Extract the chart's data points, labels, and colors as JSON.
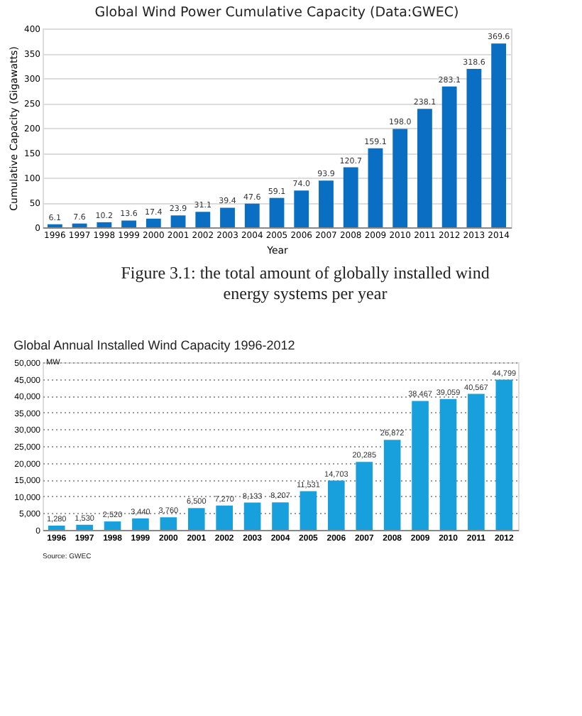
{
  "chart_data": [
    {
      "type": "bar",
      "title": "Global Wind Power Cumulative Capacity (Data:GWEC)",
      "xlabel": "Year",
      "ylabel": "Cumulative Capacity (Gigawatts)",
      "categories": [
        "1996",
        "1997",
        "1998",
        "1999",
        "2000",
        "2001",
        "2002",
        "2003",
        "2004",
        "2005",
        "2006",
        "2007",
        "2008",
        "2009",
        "2010",
        "2011",
        "2012",
        "2013",
        "2014"
      ],
      "values": [
        6.1,
        7.6,
        10.2,
        13.6,
        17.4,
        23.9,
        31.1,
        39.4,
        47.6,
        59.1,
        74.0,
        93.9,
        120.7,
        159.1,
        198.0,
        238.1,
        283.1,
        318.6,
        369.6
      ],
      "value_labels": [
        "6.1",
        "7.6",
        "10.2",
        "13.6",
        "17.4",
        "23.9",
        "31.1",
        "39.4",
        "47.6",
        "59.1",
        "74.0",
        "93.9",
        "120.7",
        "159.1",
        "198.0",
        "238.1",
        "283.1",
        "318.6",
        "369.6"
      ],
      "color": "#0a6fc2",
      "ylim": [
        0,
        400
      ],
      "yticks": [
        0,
        50,
        100,
        150,
        200,
        250,
        300,
        350,
        400
      ],
      "grid": "y",
      "annotations": [
        "Figure 3.1: the total amount of globally installed wind energy systems per year"
      ]
    },
    {
      "type": "bar",
      "title": "Global Annual Installed Wind Capacity 1996-2012",
      "ylabel": "MW",
      "categories": [
        "1996",
        "1997",
        "1998",
        "1999",
        "2000",
        "2001",
        "2002",
        "2003",
        "2004",
        "2005",
        "2006",
        "2007",
        "2008",
        "2009",
        "2010",
        "2011",
        "2012"
      ],
      "values": [
        1280,
        1530,
        2520,
        3440,
        3760,
        6500,
        7270,
        8133,
        8207,
        11531,
        14703,
        20285,
        26872,
        38467,
        39059,
        40567,
        44799
      ],
      "value_labels": [
        "1,280",
        "1,530",
        "2,520",
        "3,440",
        "3,760",
        "6,500",
        "7,270",
        "8,133",
        "8,207",
        "11,531",
        "14,703",
        "20,285",
        "26,872",
        "38,467",
        "39,059",
        "40,567",
        "44,799"
      ],
      "color": "#18a0dc",
      "ylim": [
        0,
        50000
      ],
      "yticks": [
        {
          "value": 0,
          "label": "0"
        },
        {
          "value": 5000,
          "label": "5,000"
        },
        {
          "value": 10000,
          "label": "10,000"
        },
        {
          "value": 15000,
          "label": "15,000"
        },
        {
          "value": 20000,
          "label": "20,000"
        },
        {
          "value": 25000,
          "label": "25,000"
        },
        {
          "value": 30000,
          "label": "30,000"
        },
        {
          "value": 35000,
          "label": "35,000"
        },
        {
          "value": 40000,
          "label": "40,000"
        },
        {
          "value": 45000,
          "label": "45,000"
        },
        {
          "value": 50000,
          "label": "50,000"
        }
      ],
      "grid": "y",
      "annotations": [
        "Source: GWEC"
      ]
    }
  ]
}
